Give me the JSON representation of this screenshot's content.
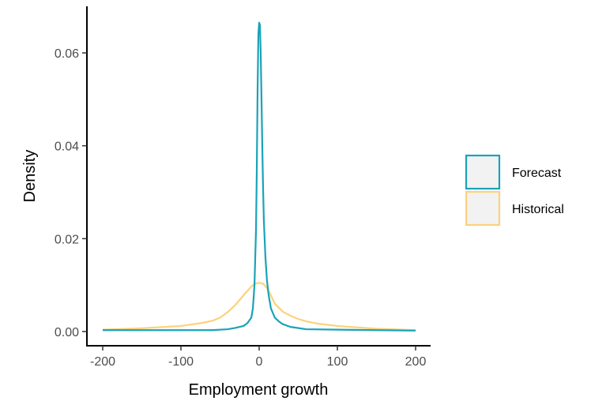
{
  "chart_data": {
    "type": "line",
    "title": "",
    "xlabel": "Employment growth",
    "ylabel": "Density",
    "xlim": [
      -200,
      200
    ],
    "ylim": [
      0,
      0.068
    ],
    "x_ticks": [
      -200,
      -100,
      0,
      100,
      200
    ],
    "x_tick_labels": [
      "-200",
      "-100",
      "0",
      "100",
      "200"
    ],
    "y_ticks": [
      0,
      0.02,
      0.04,
      0.06
    ],
    "y_tick_labels": [
      "0.00",
      "0.02",
      "0.04",
      "0.06"
    ],
    "grid": false,
    "legend_position": "right",
    "series": [
      {
        "name": "Forecast",
        "color": "#1AA3B8",
        "x": [
          -200,
          -150,
          -100,
          -60,
          -40,
          -30,
          -20,
          -15,
          -10,
          -8,
          -6,
          -4,
          -3,
          -2,
          -1,
          0,
          1,
          2,
          3,
          4,
          5,
          6,
          8,
          10,
          12,
          15,
          20,
          25,
          30,
          40,
          60,
          100,
          150,
          200
        ],
        "y": [
          0.0003,
          0.0003,
          0.0003,
          0.0003,
          0.0005,
          0.0008,
          0.0012,
          0.0018,
          0.003,
          0.005,
          0.01,
          0.022,
          0.035,
          0.052,
          0.064,
          0.0665,
          0.066,
          0.06,
          0.05,
          0.04,
          0.031,
          0.024,
          0.016,
          0.011,
          0.008,
          0.005,
          0.003,
          0.0022,
          0.0016,
          0.001,
          0.0005,
          0.0004,
          0.0003,
          0.0002
        ]
      },
      {
        "name": "Historical",
        "color": "#FCD27A",
        "x": [
          -200,
          -150,
          -100,
          -75,
          -60,
          -50,
          -40,
          -30,
          -20,
          -10,
          -5,
          0,
          5,
          10,
          15,
          20,
          30,
          40,
          50,
          60,
          75,
          100,
          150,
          200
        ],
        "y": [
          0.0004,
          0.0007,
          0.0012,
          0.0018,
          0.0023,
          0.003,
          0.0042,
          0.0058,
          0.0078,
          0.0097,
          0.0103,
          0.0105,
          0.0103,
          0.0094,
          0.0078,
          0.006,
          0.0043,
          0.0034,
          0.0027,
          0.0022,
          0.0017,
          0.0012,
          0.0006,
          0.0003
        ]
      }
    ]
  }
}
